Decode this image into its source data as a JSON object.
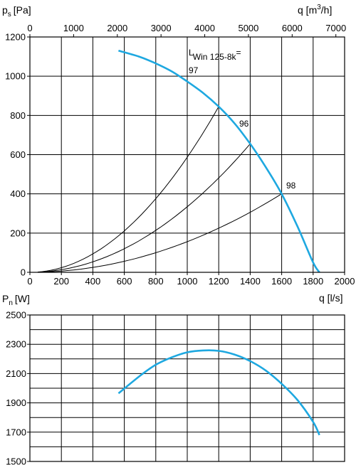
{
  "chart_data": [
    {
      "type": "line",
      "ylabel_main": "p",
      "ylabel_sub": "s",
      "ylabel_unit": "[Pa]",
      "xlabel": "q [l/s]",
      "x2label": "q [m",
      "x2label_exp": "3",
      "x2label_tail": "/h]",
      "xlim": [
        0,
        2000
      ],
      "ylim": [
        0,
        1200
      ],
      "x_ticks": [
        "0",
        "200",
        "400",
        "600",
        "800",
        "1000",
        "1200",
        "1400",
        "1600",
        "1800",
        "2000"
      ],
      "x2_ticks": [
        "0",
        "1000",
        "2000",
        "3000",
        "4000",
        "5000",
        "6000",
        "7000"
      ],
      "y_ticks": [
        "0",
        "200",
        "400",
        "600",
        "800",
        "1000",
        "1200"
      ],
      "grid": true,
      "accent": "#1ea8e0",
      "fan_curve": {
        "x": [
          563,
          700,
          800,
          900,
          1000,
          1100,
          1200,
          1300,
          1400,
          1500,
          1600,
          1700,
          1800,
          1840
        ],
        "y": [
          1130,
          1098,
          1065,
          1025,
          973,
          915,
          845,
          760,
          655,
          535,
          400,
          235,
          50,
          0
        ]
      },
      "system_curves": [
        {
          "label": "96",
          "x_end": 1200,
          "y_end": 845
        },
        {
          "label": "",
          "x_end": 1400,
          "y_end": 655
        },
        {
          "label": "98",
          "x_end": 1600,
          "y_end": 400
        }
      ],
      "annotations": {
        "model_prefix": "L",
        "model_sub": "Win 125-8k",
        "model_suffix": "=",
        "model_value": "97",
        "label_96": "96",
        "label_98": "98"
      }
    },
    {
      "type": "line",
      "ylabel_main": "P",
      "ylabel_sub": "n",
      "ylabel_unit": "[W]",
      "xlim": [
        0,
        2000
      ],
      "ylim": [
        1500,
        2500
      ],
      "y_ticks": [
        "1500",
        "1700",
        "1900",
        "2100",
        "2300",
        "2500"
      ],
      "grid": true,
      "accent": "#1ea8e0",
      "power_curve": {
        "x": [
          563,
          700,
          800,
          900,
          1000,
          1100,
          1200,
          1300,
          1400,
          1500,
          1600,
          1700,
          1800,
          1840
        ],
        "y": [
          1965,
          2085,
          2160,
          2210,
          2245,
          2258,
          2255,
          2230,
          2185,
          2120,
          2030,
          1920,
          1770,
          1680
        ]
      }
    }
  ]
}
